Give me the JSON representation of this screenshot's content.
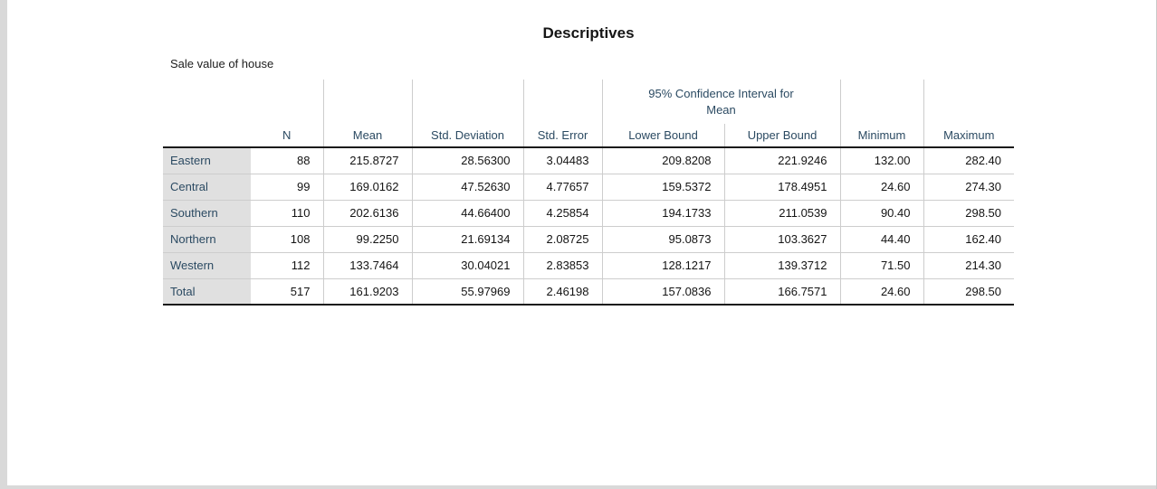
{
  "page": {
    "title": "Descriptives",
    "subtitle": "Sale value of house"
  },
  "table": {
    "group_header": "95% Confidence Interval for Mean",
    "columns": [
      "N",
      "Mean",
      "Std. Deviation",
      "Std. Error",
      "Lower Bound",
      "Upper Bound",
      "Minimum",
      "Maximum"
    ],
    "rows": [
      {
        "label": "Eastern",
        "n": "88",
        "mean": "215.8727",
        "std_dev": "28.56300",
        "std_err": "3.04483",
        "lower": "209.8208",
        "upper": "221.9246",
        "min": "132.00",
        "max": "282.40"
      },
      {
        "label": "Central",
        "n": "99",
        "mean": "169.0162",
        "std_dev": "47.52630",
        "std_err": "4.77657",
        "lower": "159.5372",
        "upper": "178.4951",
        "min": "24.60",
        "max": "274.30"
      },
      {
        "label": "Southern",
        "n": "110",
        "mean": "202.6136",
        "std_dev": "44.66400",
        "std_err": "4.25854",
        "lower": "194.1733",
        "upper": "211.0539",
        "min": "90.40",
        "max": "298.50"
      },
      {
        "label": "Northern",
        "n": "108",
        "mean": "99.2250",
        "std_dev": "21.69134",
        "std_err": "2.08725",
        "lower": "95.0873",
        "upper": "103.3627",
        "min": "44.40",
        "max": "162.40"
      },
      {
        "label": "Western",
        "n": "112",
        "mean": "133.7464",
        "std_dev": "30.04021",
        "std_err": "2.83853",
        "lower": "128.1217",
        "upper": "139.3712",
        "min": "71.50",
        "max": "214.30"
      },
      {
        "label": "Total",
        "n": "517",
        "mean": "161.9203",
        "std_dev": "55.97969",
        "std_err": "2.46198",
        "lower": "157.0836",
        "upper": "166.7571",
        "min": "24.60",
        "max": "298.50"
      }
    ]
  },
  "colors": {
    "header_text": "#2b4a62",
    "data_text": "#141414",
    "label_bg": "#e0e0e0",
    "grid_line": "#cdcdcd",
    "strong_line": "#1a1a1a",
    "page_edge": "#d9d9d9"
  }
}
